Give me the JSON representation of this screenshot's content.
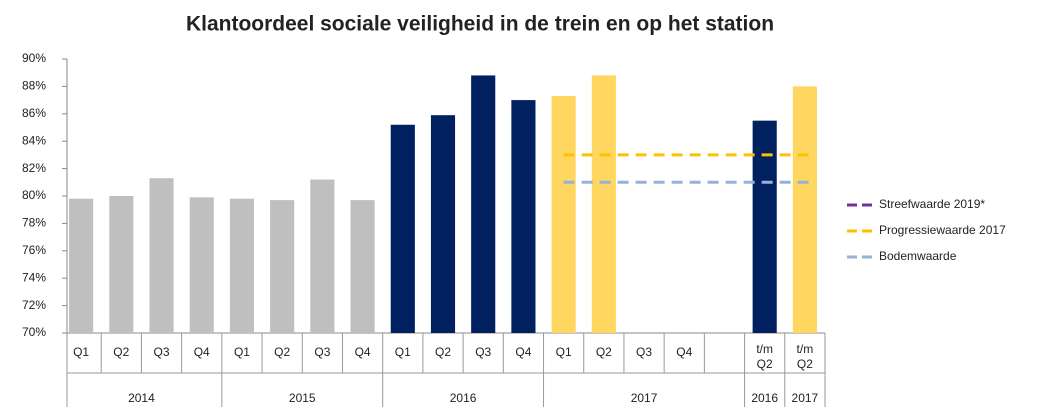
{
  "chart_data": {
    "type": "bar",
    "title": "Klantoordeel sociale veiligheid in de trein en op het station",
    "categories": [
      "Q1",
      "Q2",
      "Q3",
      "Q4",
      "Q1",
      "Q2",
      "Q3",
      "Q4",
      "Q1",
      "Q2",
      "Q3",
      "Q4",
      "Q1",
      "Q2",
      "Q3",
      "Q4",
      null,
      "t/m Q2",
      "t/m Q2"
    ],
    "category_groups": [
      "2014",
      "2014",
      "2014",
      "2014",
      "2015",
      "2015",
      "2015",
      "2015",
      "2016",
      "2016",
      "2016",
      "2016",
      "2017",
      "2017",
      "2017",
      "2017",
      "2017",
      "2016",
      "2017"
    ],
    "values": [
      79.8,
      80.0,
      81.3,
      79.9,
      79.8,
      79.7,
      81.2,
      79.7,
      85.2,
      85.9,
      88.8,
      87.0,
      87.3,
      88.8,
      null,
      null,
      null,
      85.5,
      88.0
    ],
    "colors": [
      "#bfbfbf",
      "#bfbfbf",
      "#bfbfbf",
      "#bfbfbf",
      "#bfbfbf",
      "#bfbfbf",
      "#bfbfbf",
      "#bfbfbf",
      "#002060",
      "#002060",
      "#002060",
      "#002060",
      "#ffd660",
      "#ffd660",
      "#ffd660",
      "#ffd660",
      "#ffd660",
      "#002060",
      "#ffd660"
    ],
    "reference_lines": [
      {
        "name": "Streefwaarde 2019*",
        "color": "#7030a0",
        "value": null
      },
      {
        "name": "Progressiewaarde 2017",
        "color": "#ffc000",
        "value": 83
      },
      {
        "name": "Bodemwaarde",
        "color": "#95b3d7",
        "value": 81
      }
    ],
    "ylim": [
      70,
      90
    ],
    "yticks": [
      {
        "value": 70,
        "label": "70%"
      },
      {
        "value": 72,
        "label": "72%"
      },
      {
        "value": 74,
        "label": "74%"
      },
      {
        "value": 76,
        "label": "76%"
      },
      {
        "value": 78,
        "label": "78%"
      },
      {
        "value": 80,
        "label": "80%"
      },
      {
        "value": 82,
        "label": "82%"
      },
      {
        "value": 84,
        "label": "84%"
      },
      {
        "value": 86,
        "label": "86%"
      },
      {
        "value": 88,
        "label": "88%"
      },
      {
        "value": 90,
        "label": "90%"
      }
    ],
    "grid": false,
    "legend": "right"
  }
}
